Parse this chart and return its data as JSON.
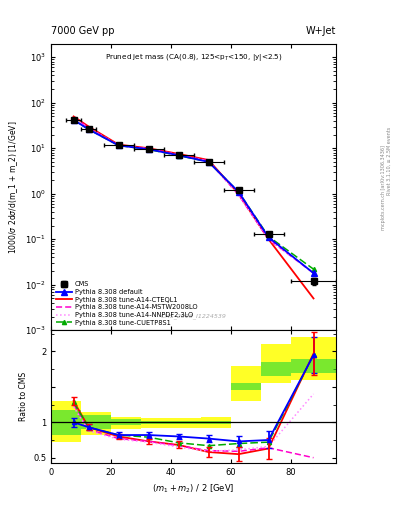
{
  "title_left": "7000 GeV pp",
  "title_right": "W+Jet",
  "panel_title": "Pruned jet mass (CA(0.8), 125<p$_T$<150, |y|<2.5)",
  "ylabel_main": "1000/σ 2dσ/d(m_1 + m_2) [1/GeV]",
  "ylabel_ratio": "Ratio to CMS",
  "xlabel": "(m_1 + m_2) / 2 [GeV]",
  "watermark": "CMS_2013_I1224539",
  "right_label1": "Rivet 3.1.10, ≥ 2.5M events",
  "right_label2": "mcplots.cern.ch [arXiv:1306.3436]",
  "x_data": [
    7.5,
    12.5,
    22.5,
    32.5,
    42.5,
    52.5,
    62.5,
    72.5,
    87.5
  ],
  "cms_xerr": [
    2.5,
    2.5,
    5.0,
    5.0,
    5.0,
    5.0,
    5.0,
    5.0,
    7.5
  ],
  "cms_y": [
    42.0,
    26.0,
    11.5,
    9.5,
    7.0,
    5.0,
    1.2,
    0.13,
    0.012
  ],
  "cms_yerr": [
    3.0,
    2.0,
    1.0,
    0.8,
    0.6,
    0.4,
    0.12,
    0.015,
    0.002
  ],
  "default_y": [
    42.0,
    26.0,
    11.5,
    9.5,
    7.0,
    5.0,
    1.1,
    0.11,
    0.018
  ],
  "cteql1_y": [
    50.0,
    30.0,
    12.0,
    10.0,
    7.5,
    5.5,
    1.0,
    0.1,
    0.005
  ],
  "mstw_y": [
    48.0,
    28.0,
    11.8,
    9.8,
    7.2,
    5.3,
    0.95,
    0.1,
    0.018
  ],
  "nnpdf_y": [
    47.0,
    27.5,
    11.6,
    9.6,
    7.1,
    5.2,
    0.93,
    0.1,
    0.018
  ],
  "cuetp_y": [
    42.0,
    26.0,
    11.5,
    9.4,
    6.9,
    5.0,
    1.1,
    0.115,
    0.022
  ],
  "ratio_default_y": [
    1.0,
    0.93,
    0.82,
    0.82,
    0.8,
    0.77,
    0.73,
    0.75,
    1.95
  ],
  "ratio_cteql1_y": [
    1.3,
    0.93,
    0.8,
    0.73,
    0.68,
    0.58,
    0.55,
    0.63,
    1.97
  ],
  "ratio_mstw_y": [
    1.25,
    0.9,
    0.77,
    0.73,
    0.67,
    0.6,
    0.59,
    0.64,
    0.5
  ],
  "ratio_nnpdf_y": [
    1.22,
    0.88,
    0.76,
    0.72,
    0.65,
    0.59,
    0.61,
    0.66,
    1.4
  ],
  "ratio_cuetp_y": [
    1.28,
    0.93,
    0.82,
    0.79,
    0.71,
    0.67,
    0.7,
    0.72,
    1.95
  ],
  "ratio_default_yerr": [
    0.06,
    0.04,
    0.04,
    0.04,
    0.04,
    0.05,
    0.08,
    0.12,
    0.25
  ],
  "ratio_cteql1_yerr": [
    0.06,
    0.04,
    0.04,
    0.04,
    0.05,
    0.07,
    0.1,
    0.15,
    0.3
  ],
  "bx_edges": [
    0,
    10,
    20,
    30,
    40,
    50,
    60,
    70,
    80,
    95
  ],
  "yellow_lo": [
    0.72,
    0.82,
    0.9,
    0.92,
    0.92,
    0.92,
    1.3,
    1.55,
    1.6
  ],
  "yellow_hi": [
    1.3,
    1.15,
    1.08,
    1.06,
    1.06,
    1.08,
    1.8,
    2.1,
    2.2
  ],
  "green_lo": [
    0.82,
    0.9,
    0.96,
    0.98,
    0.98,
    0.98,
    1.45,
    1.65,
    1.7
  ],
  "green_hi": [
    1.18,
    1.1,
    1.04,
    1.02,
    1.02,
    1.02,
    1.55,
    1.85,
    1.9
  ],
  "color_default": "#0000ff",
  "color_cteql1": "#ff0000",
  "color_mstw": "#ff00cc",
  "color_nnpdf": "#ff88ff",
  "color_cuetp": "#00aa00",
  "color_cms": "#000000",
  "ylim_main": [
    0.001,
    2000.0
  ],
  "ylim_ratio": [
    0.42,
    2.3
  ],
  "xlim": [
    0,
    95
  ]
}
